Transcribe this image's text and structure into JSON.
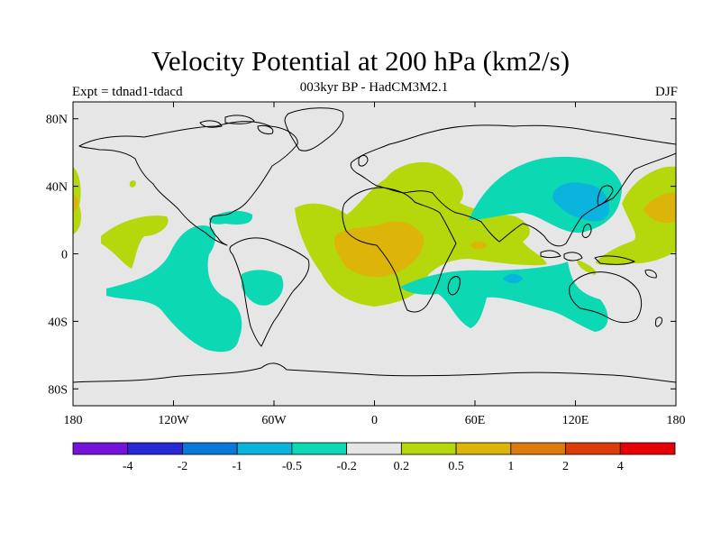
{
  "header": {
    "title": "Velocity Potential at 200 hPa (km2/s)",
    "subtitle": "003kyr BP - HadCM3M2.1",
    "left_label": "Expt = tdnad1-tdacd",
    "right_label": "DJF"
  },
  "map": {
    "projection": "cylindrical equidistant",
    "lon_range": [
      -180,
      180
    ],
    "lat_range": [
      -90,
      90
    ],
    "background_color": "#e6e6e6",
    "lat_ticks": [
      {
        "value": 80,
        "label": "80N"
      },
      {
        "value": 40,
        "label": "40N"
      },
      {
        "value": 0,
        "label": "0"
      },
      {
        "value": -40,
        "label": "40S"
      },
      {
        "value": -80,
        "label": "80S"
      }
    ],
    "lon_ticks": [
      {
        "value": -180,
        "label": "180"
      },
      {
        "value": -120,
        "label": "120W"
      },
      {
        "value": -60,
        "label": "60W"
      },
      {
        "value": 0,
        "label": "0"
      },
      {
        "value": 60,
        "label": "60E"
      },
      {
        "value": 120,
        "label": "120E"
      },
      {
        "value": 180,
        "label": "180"
      }
    ]
  },
  "colorbar": {
    "colors": [
      "#7412d9",
      "#2a28d6",
      "#0a78d8",
      "#0ab4dc",
      "#0cd8b4",
      "#e6e6e6",
      "#b4d80c",
      "#dcb40a",
      "#dc7a0a",
      "#dc3c0a",
      "#e80008"
    ],
    "labels": [
      "-4",
      "-2",
      "-1",
      "-0.5",
      "-0.2",
      "0.2",
      "0.5",
      "1",
      "2",
      "4"
    ]
  }
}
